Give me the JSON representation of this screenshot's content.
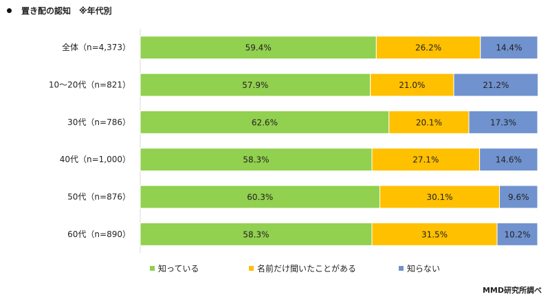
{
  "title": "置き配の認知　※年代別",
  "source": "MMD研究所調べ",
  "chart_data": {
    "type": "bar",
    "orientation": "horizontal",
    "stacked": true,
    "percent": true,
    "xlim": [
      0,
      100
    ],
    "grid": false,
    "legend_position": "bottom",
    "categories": [
      "全体（n=4,373）",
      "10～20代（n=821）",
      "30代（n=786）",
      "40代（n=1,000）",
      "50代（n=876）",
      "60代（n=890）"
    ],
    "series": [
      {
        "name": "知っている",
        "color": "#92D050",
        "values": [
          59.4,
          57.9,
          62.6,
          58.3,
          60.3,
          58.3
        ],
        "labels": [
          "59.4%",
          "57.9%",
          "62.6%",
          "58.3%",
          "60.3%",
          "58.3%"
        ]
      },
      {
        "name": "名前だけ聞いたことがある",
        "color": "#FFC000",
        "values": [
          26.2,
          21.0,
          20.1,
          27.1,
          30.1,
          31.5
        ],
        "labels": [
          "26.2%",
          "21.0%",
          "20.1%",
          "27.1%",
          "30.1%",
          "31.5%"
        ]
      },
      {
        "name": "知らない",
        "color": "#7092CE",
        "values": [
          14.4,
          21.2,
          17.3,
          14.6,
          9.6,
          10.2
        ],
        "labels": [
          "14.4%",
          "21.2%",
          "17.3%",
          "14.6%",
          "9.6%",
          "10.2%"
        ]
      }
    ]
  }
}
